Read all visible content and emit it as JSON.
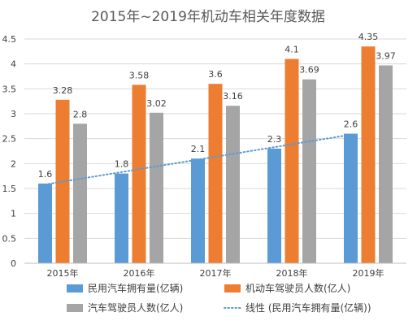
{
  "chart_data": {
    "type": "bar",
    "title": "2015年~2019年机动车相关年度数据",
    "categories": [
      "2015年",
      "2016年",
      "2017年",
      "2018年",
      "2019年"
    ],
    "series": [
      {
        "name": "民用汽车拥有量(亿辆)",
        "values": [
          1.6,
          1.8,
          2.1,
          2.3,
          2.6
        ],
        "color": "#5B9BD5"
      },
      {
        "name": "机动车驾驶员人数(亿人)",
        "values": [
          3.28,
          3.58,
          3.6,
          4.1,
          4.35
        ],
        "color": "#ED7D31"
      },
      {
        "name": "汽车驾驶员人数(亿人)",
        "values": [
          2.8,
          3.02,
          3.16,
          3.69,
          3.97
        ],
        "color": "#A5A5A5"
      }
    ],
    "trendline": {
      "name": "线性 (民用汽车拥有量(亿辆))",
      "type": "linear",
      "of_series": 0,
      "color": "#5B9BD5",
      "style": "dotted"
    },
    "data_labels": [
      [
        "1.6",
        "1.8",
        "2.1",
        "2.3",
        "2.6"
      ],
      [
        "3.28",
        "3.58",
        "3.6",
        "4.1",
        "4.35"
      ],
      [
        "2.8",
        "3.02",
        "3.16",
        "3.69",
        "3.97"
      ]
    ],
    "ylim": [
      0,
      4.5
    ],
    "yticks": [
      "0",
      "0.5",
      "1",
      "1.5",
      "2",
      "2.5",
      "3",
      "3.5",
      "4",
      "4.5"
    ],
    "grid": true,
    "legend_position": "bottom"
  }
}
